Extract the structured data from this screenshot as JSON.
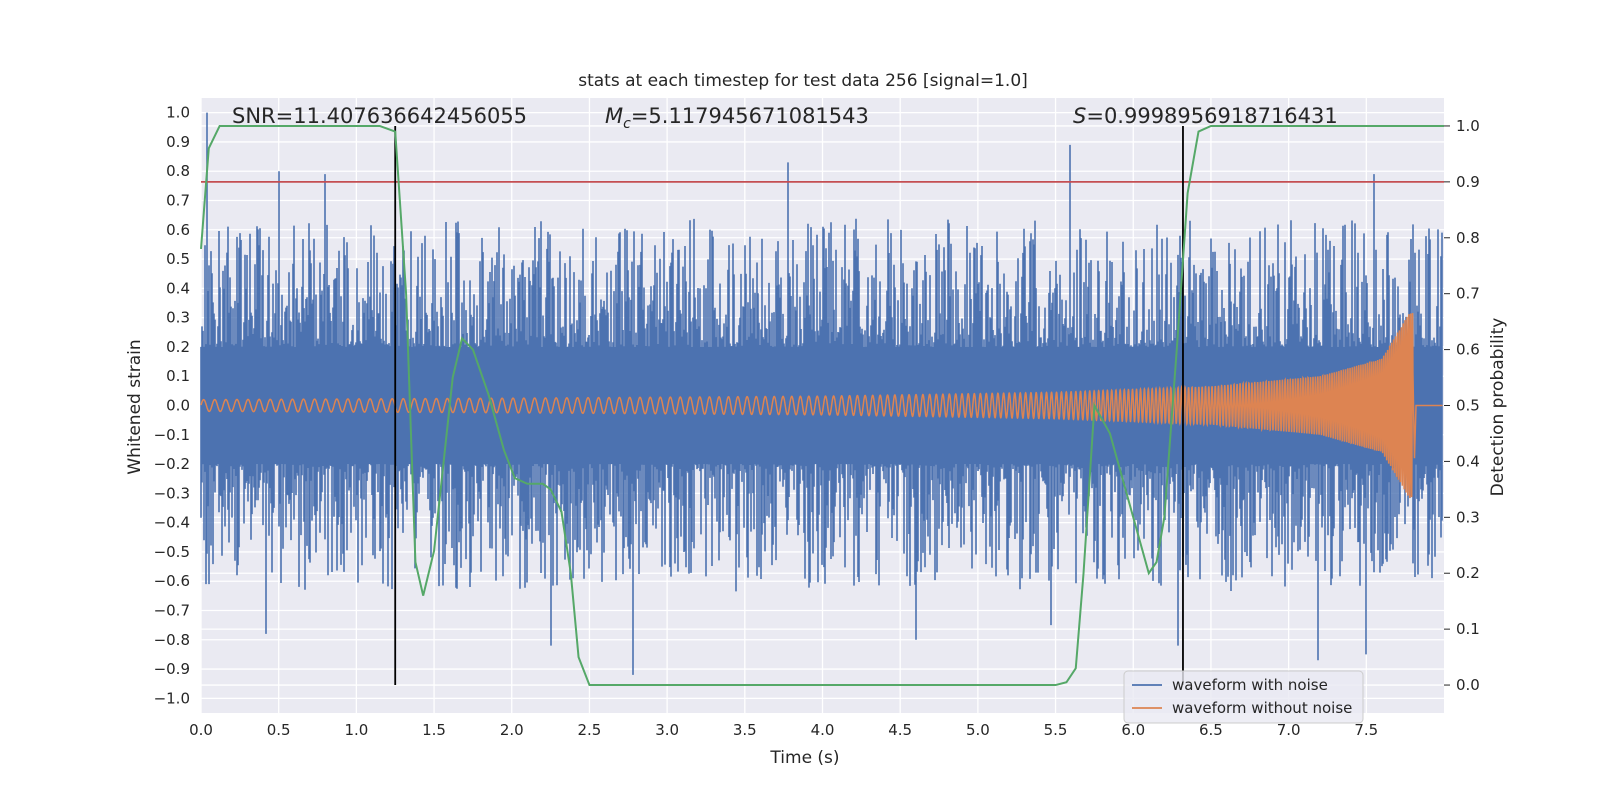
{
  "chart_data": {
    "type": "line",
    "title": "stats at each timestep for test data 256 [signal=1.0]",
    "xlabel": "Time (s)",
    "ylabel_left": "Whitened strain",
    "ylabel_right": "Detection probability",
    "xlim": [
      0.0,
      8.0
    ],
    "ylim_left": [
      -1.05,
      1.05
    ],
    "ylim_right": [
      -0.05,
      1.05
    ],
    "x_ticks": [
      "0.0",
      "0.5",
      "1.0",
      "1.5",
      "2.0",
      "2.5",
      "3.0",
      "3.5",
      "4.0",
      "4.5",
      "5.0",
      "5.5",
      "6.0",
      "6.5",
      "7.0",
      "7.5"
    ],
    "y_ticks_left": [
      "1.0",
      "0.9",
      "0.8",
      "0.7",
      "0.6",
      "0.5",
      "0.4",
      "0.3",
      "0.2",
      "0.1",
      "0.0",
      "−0.1",
      "−0.2",
      "−0.3",
      "−0.4",
      "−0.5",
      "−0.6",
      "−0.7",
      "−0.8",
      "−0.9",
      "−1.0"
    ],
    "y_ticks_right": [
      "1.0",
      "0.9",
      "0.8",
      "0.7",
      "0.6",
      "0.5",
      "0.4",
      "0.3",
      "0.2",
      "0.1",
      "0.0"
    ],
    "stats": {
      "snr": "SNR=11.407636642456055",
      "mc_symbol": "M",
      "mc_sub": "c",
      "mc_value": "=5.117945671081543",
      "s_symbol": "S",
      "s_value": "=0.9998956918716431"
    },
    "threshold_right": 0.9,
    "vertical_markers_s": [
      1.25,
      6.32
    ],
    "noise_envelope": {
      "t_end": 7.99,
      "core_abs": 0.2,
      "typical_peak": 0.55,
      "spikes": [
        {
          "t": 0.04,
          "v": 1.0
        },
        {
          "t": 0.5,
          "v": 0.8
        },
        {
          "t": 0.8,
          "v": 0.79
        },
        {
          "t": 3.78,
          "v": 0.83
        },
        {
          "t": 5.59,
          "v": 0.89
        },
        {
          "t": 7.55,
          "v": 0.79
        },
        {
          "t": 0.42,
          "v": -0.78
        },
        {
          "t": 2.78,
          "v": -0.92
        },
        {
          "t": 2.25,
          "v": -0.82
        },
        {
          "t": 4.6,
          "v": -0.8
        },
        {
          "t": 5.47,
          "v": -0.75
        },
        {
          "t": 6.29,
          "v": -0.82
        },
        {
          "t": 7.19,
          "v": -0.87
        },
        {
          "t": 7.5,
          "v": -0.85
        }
      ]
    },
    "clean_waveform": {
      "t_merge": 7.8,
      "amplitudes": [
        {
          "t": 0.0,
          "a": 0.02
        },
        {
          "t": 2.0,
          "a": 0.025
        },
        {
          "t": 4.0,
          "a": 0.032
        },
        {
          "t": 5.5,
          "a": 0.045
        },
        {
          "t": 6.5,
          "a": 0.065
        },
        {
          "t": 7.2,
          "a": 0.1
        },
        {
          "t": 7.6,
          "a": 0.16
        },
        {
          "t": 7.78,
          "a": 0.32
        }
      ]
    },
    "series": [
      {
        "name": "waveform with noise",
        "color": "#4c72b0"
      },
      {
        "name": "waveform without noise",
        "color": "#dd8452"
      },
      {
        "name": "detection probability",
        "color": "#55a868",
        "points": [
          [
            0.0,
            0.78
          ],
          [
            0.05,
            0.96
          ],
          [
            0.12,
            1.0
          ],
          [
            1.15,
            1.0
          ],
          [
            1.25,
            0.99
          ],
          [
            1.32,
            0.7
          ],
          [
            1.38,
            0.22
          ],
          [
            1.43,
            0.16
          ],
          [
            1.5,
            0.24
          ],
          [
            1.62,
            0.55
          ],
          [
            1.68,
            0.62
          ],
          [
            1.75,
            0.6
          ],
          [
            1.85,
            0.52
          ],
          [
            1.95,
            0.42
          ],
          [
            2.02,
            0.37
          ],
          [
            2.1,
            0.36
          ],
          [
            2.2,
            0.36
          ],
          [
            2.25,
            0.35
          ],
          [
            2.32,
            0.31
          ],
          [
            2.38,
            0.2
          ],
          [
            2.43,
            0.05
          ],
          [
            2.5,
            0.0
          ],
          [
            5.5,
            0.0
          ],
          [
            5.57,
            0.005
          ],
          [
            5.63,
            0.03
          ],
          [
            5.68,
            0.2
          ],
          [
            5.75,
            0.5
          ],
          [
            5.85,
            0.45
          ],
          [
            5.95,
            0.35
          ],
          [
            6.05,
            0.25
          ],
          [
            6.1,
            0.2
          ],
          [
            6.15,
            0.22
          ],
          [
            6.2,
            0.3
          ],
          [
            6.28,
            0.6
          ],
          [
            6.35,
            0.88
          ],
          [
            6.42,
            0.99
          ],
          [
            6.5,
            1.0
          ],
          [
            8.0,
            1.0
          ]
        ]
      }
    ],
    "legend": {
      "location": "lower-right",
      "entries": [
        "waveform with noise",
        "waveform without noise"
      ]
    },
    "colors": {
      "background": "#eaeaf2",
      "grid": "#ffffff",
      "threshold": "#c44e52",
      "marker": "#000000"
    }
  }
}
